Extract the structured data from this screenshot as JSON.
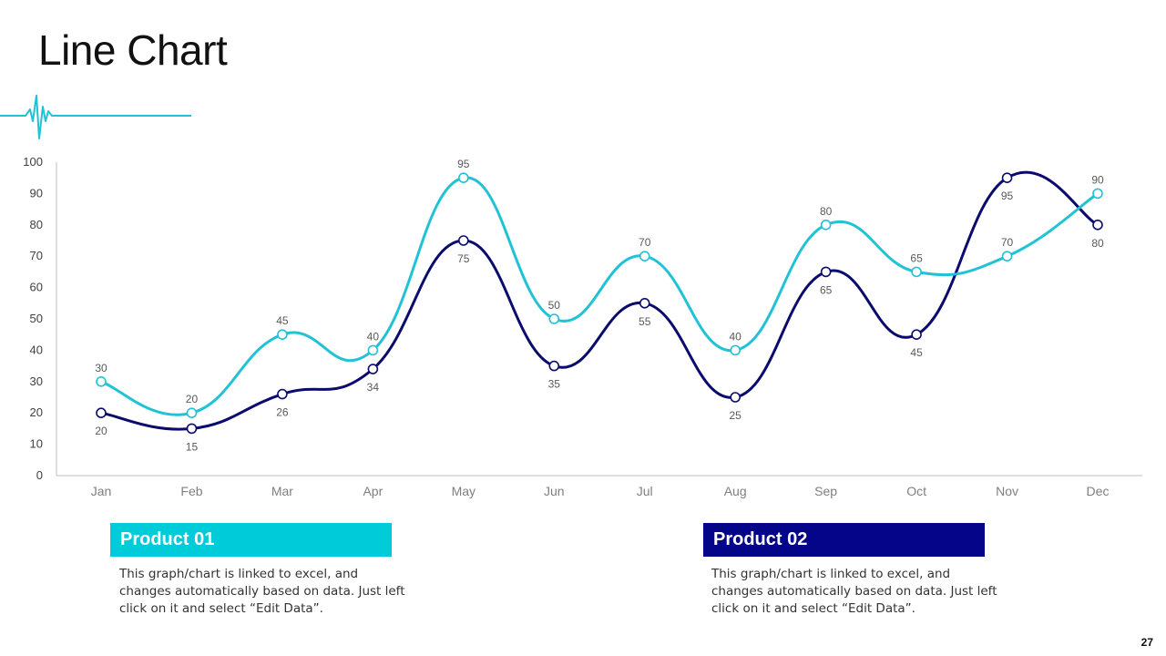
{
  "slide": {
    "title": "Line Chart",
    "page_number": "27"
  },
  "colors": {
    "product01": "#22c2d6",
    "product02": "#0b0b6e",
    "legend01_bg": "#00ccd9",
    "legend02_bg": "#05058a"
  },
  "legend": [
    {
      "label": "Product 01",
      "description": "This graph/chart is linked to excel, and changes automatically based on data. Just left click on it and select “Edit Data”."
    },
    {
      "label": "Product 02",
      "description": "This graph/chart is linked to excel, and changes automatically based on data. Just left click on it and select “Edit Data”."
    }
  ],
  "chart_data": {
    "type": "line",
    "title": "",
    "xlabel": "",
    "ylabel": "",
    "categories": [
      "Jan",
      "Feb",
      "Mar",
      "Apr",
      "May",
      "Jun",
      "Jul",
      "Aug",
      "Sep",
      "Oct",
      "Nov",
      "Dec"
    ],
    "ylim": [
      0,
      100
    ],
    "yticks": [
      0,
      10,
      20,
      30,
      40,
      50,
      60,
      70,
      80,
      90,
      100
    ],
    "grid": false,
    "smooth": true,
    "series": [
      {
        "name": "Product 01",
        "values": [
          30,
          20,
          45,
          40,
          95,
          50,
          70,
          40,
          80,
          65,
          70,
          90
        ],
        "label_position": "above"
      },
      {
        "name": "Product 02",
        "values": [
          20,
          15,
          26,
          34,
          75,
          35,
          55,
          25,
          65,
          45,
          95,
          80
        ],
        "label_position": "below"
      }
    ]
  }
}
